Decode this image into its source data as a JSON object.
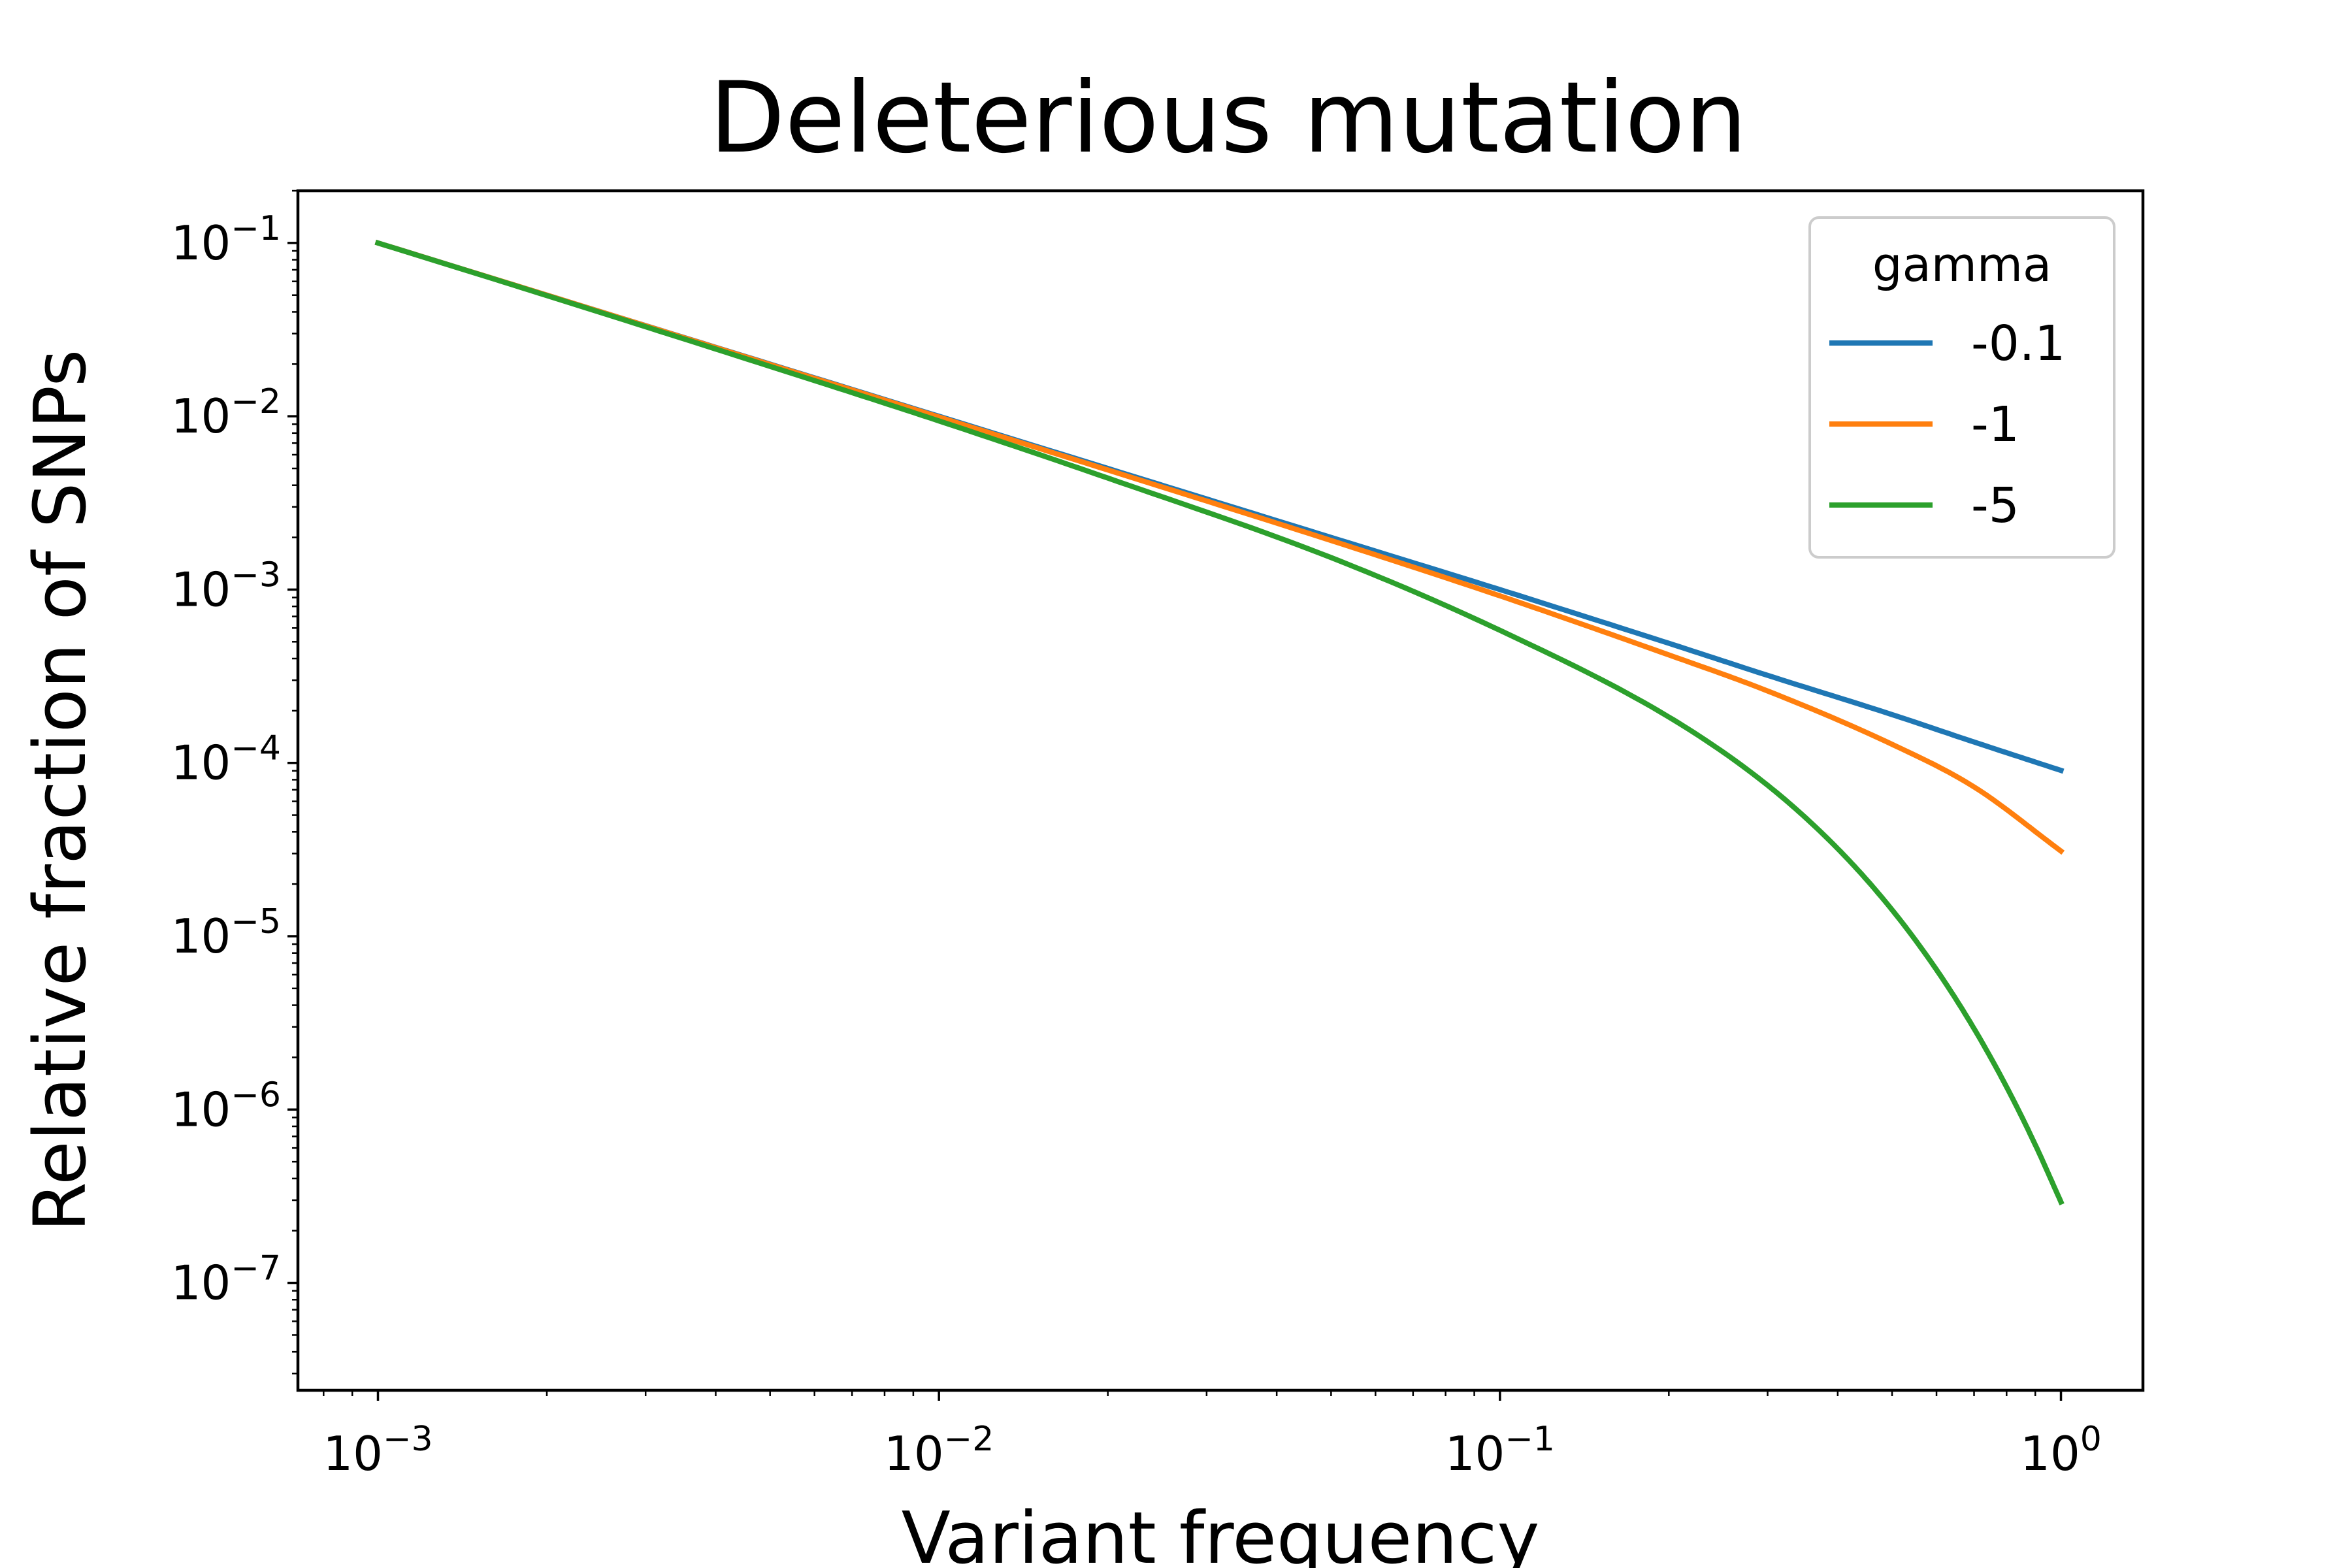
{
  "chart_data": {
    "type": "line",
    "title": "Deleterious mutation",
    "xlabel": "Variant frequency",
    "ylabel": "Relative fraction of SNPs",
    "xscale": "log",
    "yscale": "log",
    "xlim": [
      0.00072,
      1.4
    ],
    "ylim": [
      2.4e-08,
      0.2
    ],
    "grid": false,
    "legend": {
      "title": "gamma",
      "placement": "top-right"
    },
    "xticks": [
      {
        "value": 0.001,
        "base": "10",
        "exp": "−3"
      },
      {
        "value": 0.01,
        "base": "10",
        "exp": "−2"
      },
      {
        "value": 0.1,
        "base": "10",
        "exp": "−1"
      },
      {
        "value": 1,
        "base": "10",
        "exp": "0"
      }
    ],
    "yticks": [
      {
        "value": 0.1,
        "base": "10",
        "exp": "−1"
      },
      {
        "value": 0.01,
        "base": "10",
        "exp": "−2"
      },
      {
        "value": 0.001,
        "base": "10",
        "exp": "−3"
      },
      {
        "value": 0.0001,
        "base": "10",
        "exp": "−4"
      },
      {
        "value": 1e-05,
        "base": "10",
        "exp": "−5"
      },
      {
        "value": 1e-06,
        "base": "10",
        "exp": "−6"
      },
      {
        "value": 1e-07,
        "base": "10",
        "exp": "−7"
      }
    ],
    "series": [
      {
        "name": "-0.1",
        "color": "#1f77b4",
        "x": [
          0.001,
          0.002,
          0.005,
          0.01,
          0.02,
          0.05,
          0.1,
          0.2,
          0.3,
          0.5,
          0.7,
          1.0
        ],
        "y": [
          0.1,
          0.05,
          0.02,
          0.01,
          0.005,
          0.002,
          0.001,
          0.00049,
          0.00032,
          0.00019,
          0.000132,
          9.05e-05
        ]
      },
      {
        "name": "-1",
        "color": "#ff7f0e",
        "x": [
          0.001,
          0.002,
          0.005,
          0.01,
          0.02,
          0.05,
          0.1,
          0.2,
          0.3,
          0.5,
          0.7,
          1.0
        ],
        "y": [
          0.1,
          0.05,
          0.0199,
          0.0099,
          0.0049,
          0.00192,
          0.00092,
          0.00042,
          0.00026,
          0.000128,
          7.27e-05,
          3.1e-05
        ]
      },
      {
        "name": "-5",
        "color": "#2ca02c",
        "x": [
          0.001,
          0.002,
          0.005,
          0.01,
          0.02,
          0.05,
          0.1,
          0.2,
          0.3,
          0.4,
          0.5,
          0.6,
          0.7,
          0.8,
          0.9,
          1.0
        ],
        "y": [
          0.1,
          0.0497,
          0.0194,
          0.0094,
          0.0044,
          0.00153,
          0.000582,
          0.000184,
          7.43e-05,
          3.2e-05,
          1.42e-05,
          6.41e-06,
          2.93e-06,
          1.35e-06,
          6.26e-07,
          2.93e-07
        ]
      }
    ]
  }
}
